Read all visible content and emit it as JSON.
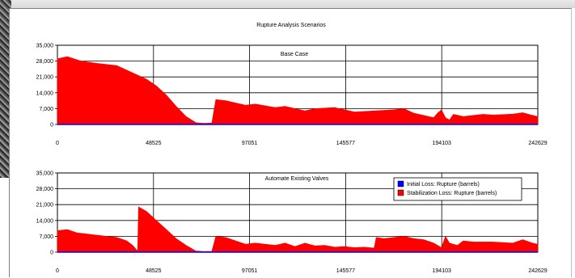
{
  "chart_title": "Rupture Analysis Scenarios",
  "chart_data": [
    {
      "type": "area",
      "title": "Base Case",
      "x_ticks": [
        "0",
        "48525",
        "97051",
        "145577",
        "194103",
        "242629"
      ],
      "y_ticks": [
        "0",
        "7,000",
        "14,000",
        "21,000",
        "28,000",
        "35,000"
      ],
      "xlim": [
        0,
        242629
      ],
      "ylim": [
        0,
        35000
      ],
      "grid": true,
      "series": [
        {
          "name": "Initial Loss: Rupture (barrels)",
          "color": "#0000ff",
          "x": [
            0,
            242629
          ],
          "y": [
            0,
            0
          ]
        },
        {
          "name": "Stabilization Loss: Rupture (barrels)",
          "color": "#ff0000",
          "x": [
            0,
            5000,
            12000,
            20000,
            30000,
            40000,
            45000,
            50000,
            55000,
            60000,
            65000,
            70000,
            74000,
            78000,
            80000,
            85000,
            95000,
            100000,
            110000,
            115000,
            125000,
            130000,
            140000,
            145000,
            150000,
            160000,
            170000,
            175000,
            180000,
            185000,
            190000,
            192000,
            194000,
            196000,
            198000,
            200000,
            205000,
            210000,
            215000,
            220000,
            230000,
            235000,
            240000,
            242629
          ],
          "y": [
            29000,
            30000,
            28000,
            27000,
            26000,
            22000,
            20000,
            17000,
            13000,
            8000,
            3500,
            800,
            500,
            700,
            11000,
            10500,
            8500,
            9000,
            7500,
            8000,
            6000,
            7000,
            7500,
            6500,
            5500,
            6000,
            6500,
            7000,
            5000,
            4000,
            3000,
            5000,
            6500,
            3000,
            2000,
            4500,
            3500,
            4000,
            4500,
            4200,
            4600,
            5200,
            4000,
            3500
          ]
        }
      ]
    },
    {
      "type": "area",
      "title": "Automate Existing Valves",
      "x_ticks": [
        "0",
        "48525",
        "97051",
        "145577",
        "194103",
        "242629"
      ],
      "y_ticks": [
        "0",
        "7,000",
        "14,000",
        "21,000",
        "28,000",
        "35,000"
      ],
      "xlim": [
        0,
        242629
      ],
      "ylim": [
        0,
        35000
      ],
      "grid": true,
      "legend_position": "top-right",
      "series": [
        {
          "name": "Initial Loss: Rupture (barrels)",
          "color": "#0000ff",
          "x": [
            0,
            242629
          ],
          "y": [
            0,
            0
          ]
        },
        {
          "name": "Stabilization Loss: Rupture (barrels)",
          "color": "#ff0000",
          "x": [
            0,
            5000,
            10000,
            15000,
            20000,
            25000,
            30000,
            35000,
            38000,
            40000,
            40500,
            41000,
            45000,
            50000,
            55000,
            60000,
            65000,
            70000,
            74000,
            78000,
            80000,
            85000,
            90000,
            95000,
            100000,
            110000,
            115000,
            120000,
            125000,
            130000,
            135000,
            140000,
            145000,
            150000,
            155000,
            160000,
            161000,
            165000,
            170000,
            175000,
            180000,
            185000,
            190000,
            194000,
            196000,
            198000,
            202000,
            205000,
            210000,
            220000,
            230000,
            235000,
            240000,
            242629
          ],
          "y": [
            9500,
            10000,
            8500,
            8000,
            7500,
            7000,
            6500,
            5000,
            3000,
            1000,
            500,
            20000,
            18000,
            14000,
            10000,
            6000,
            3000,
            500,
            300,
            400,
            7000,
            6500,
            5000,
            3500,
            4000,
            3000,
            4000,
            2500,
            4000,
            2800,
            3000,
            2200,
            2500,
            2000,
            2200,
            1800,
            6500,
            6000,
            6500,
            7000,
            6000,
            5500,
            4000,
            2000,
            7000,
            4000,
            3000,
            5000,
            4500,
            4500,
            4000,
            5500,
            4000,
            3500
          ]
        }
      ]
    }
  ]
}
